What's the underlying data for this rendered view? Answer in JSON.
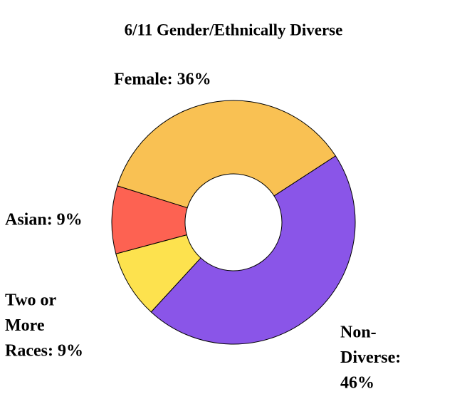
{
  "chart_data": {
    "type": "donut",
    "title": "6/11 Gender/Ethnically Diverse",
    "categories": [
      "Female",
      "Non-Diverse",
      "Two or More Races",
      "Asian"
    ],
    "values": [
      36,
      46,
      9,
      9
    ],
    "labels": [
      [
        "Female: 36%"
      ],
      [
        "Non-",
        "Diverse:",
        "46%"
      ],
      [
        "Two or",
        "More",
        "Races: 9%"
      ],
      [
        "Asian: 9%"
      ]
    ],
    "colors": [
      "#f9c153",
      "#8a55e8",
      "#fde24e",
      "#fd6252"
    ]
  }
}
